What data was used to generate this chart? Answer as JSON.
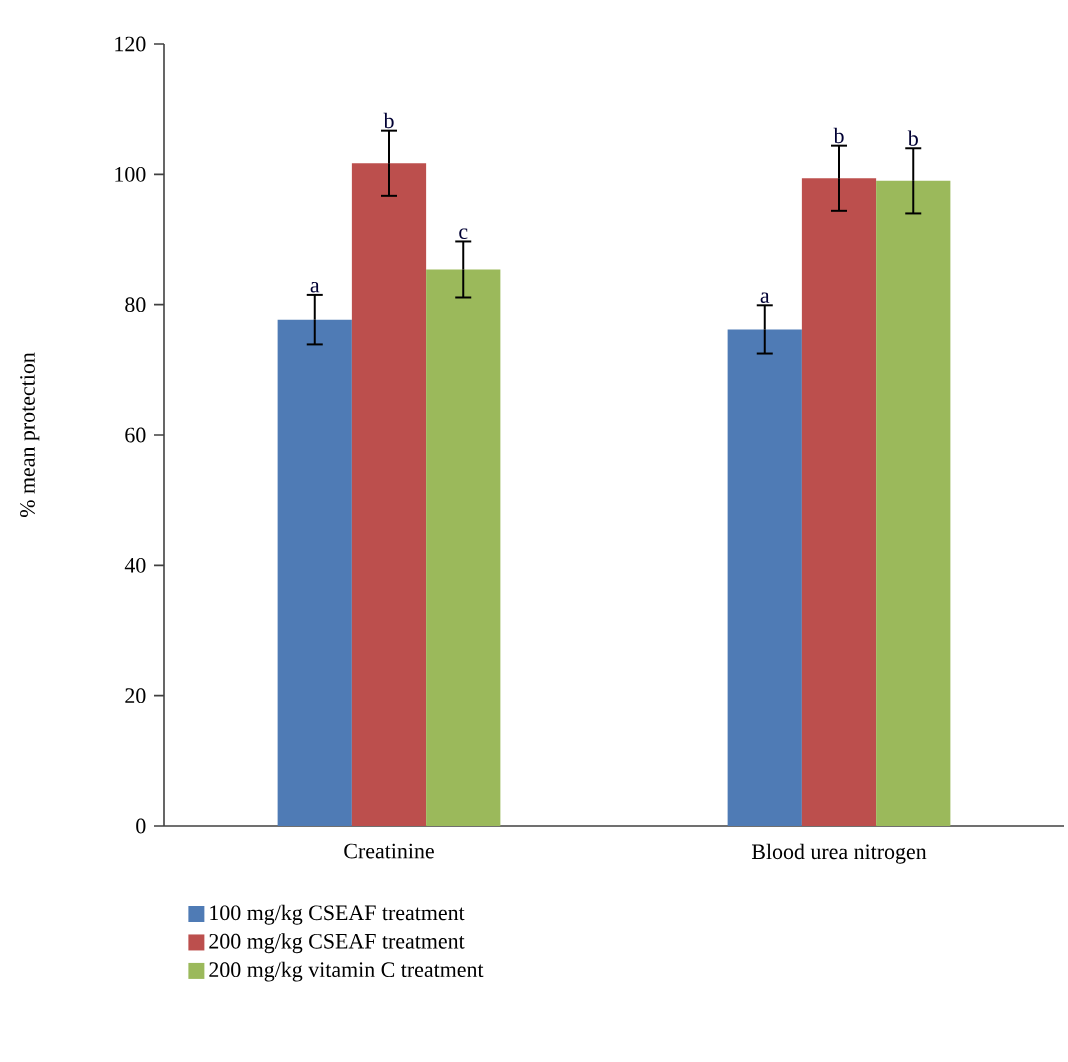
{
  "chart_data": {
    "type": "bar",
    "ylabel": "% mean protection",
    "categories": [
      "Creatinine",
      "Blood urea nitrogen"
    ],
    "ylim": [
      0,
      120
    ],
    "yticks": [
      0,
      20,
      40,
      60,
      80,
      100,
      120
    ],
    "legend": "bottom",
    "grid": false,
    "series": [
      {
        "name": "100 mg/kg CSEAF treatment",
        "color": "#4f7bb5",
        "values": [
          77.7,
          76.2
        ],
        "errors": [
          3.8,
          3.7
        ]
      },
      {
        "name": "200 mg/kg CSEAF treatment",
        "color": "#bc4f4d",
        "values": [
          101.7,
          99.4
        ],
        "errors": [
          5,
          5
        ]
      },
      {
        "name": "200 mg/kg vitamin C treatment",
        "color": "#9bb95b",
        "values": [
          85.4,
          99.0
        ],
        "errors": [
          4.3,
          5
        ]
      }
    ],
    "annotations": [
      "a",
      "b",
      "c",
      "a",
      "b",
      "b"
    ]
  }
}
